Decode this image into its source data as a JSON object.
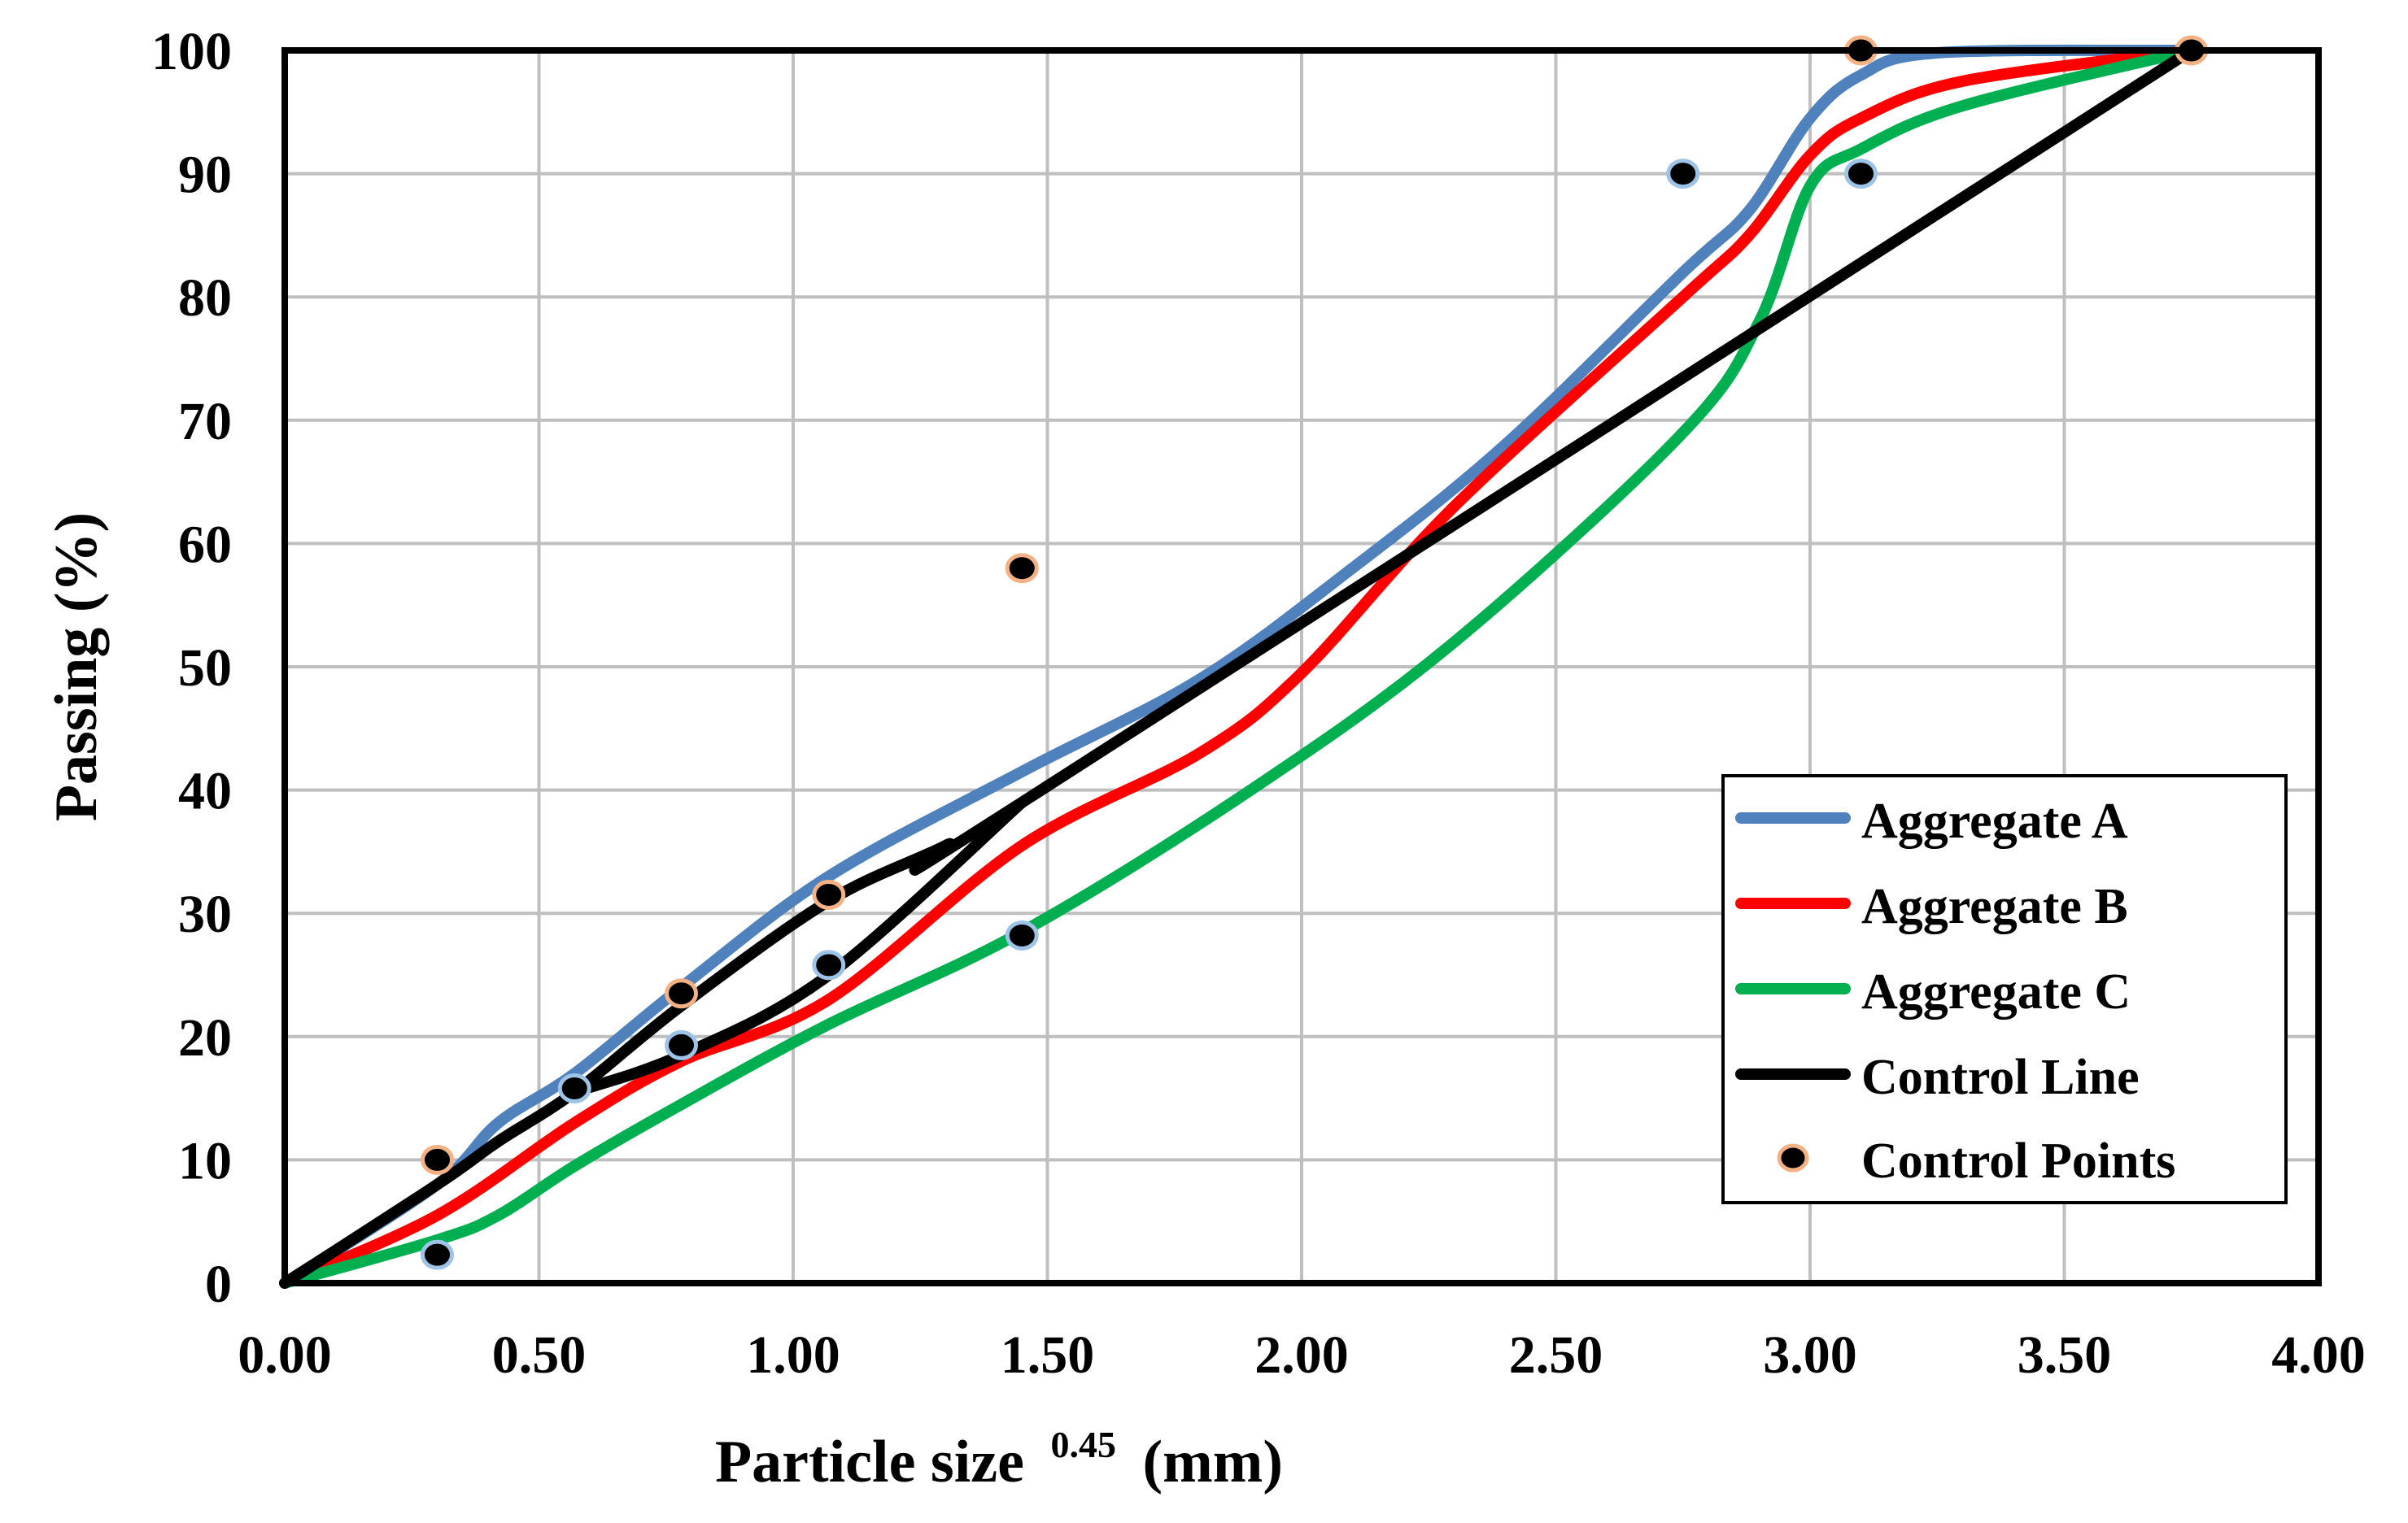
{
  "chart_data": {
    "type": "line",
    "title": "",
    "xlabel_main": "Particle size",
    "xlabel_sup": "0.45",
    "xlabel_unit": "(mm)",
    "ylabel": "Passing (%)",
    "xlim": [
      0,
      4
    ],
    "ylim": [
      0,
      100
    ],
    "x_ticks": [
      0,
      0.5,
      1,
      1.5,
      2,
      2.5,
      3,
      3.5,
      4
    ],
    "x_tick_labels": [
      "0.00",
      "0.50",
      "1.00",
      "1.50",
      "2.00",
      "2.50",
      "3.00",
      "3.50",
      "4.00"
    ],
    "y_ticks": [
      0,
      10,
      20,
      30,
      40,
      50,
      60,
      70,
      80,
      90,
      100
    ],
    "y_tick_labels": [
      "0",
      "10",
      "20",
      "30",
      "40",
      "50",
      "60",
      "70",
      "80",
      "90",
      "100"
    ],
    "grid": true,
    "legend_position": "bottom-right",
    "series": [
      {
        "name": "Aggregate A",
        "color": "#4f81bd",
        "points": [
          [
            0,
            0
          ],
          [
            0.3,
            8
          ],
          [
            0.42,
            13
          ],
          [
            0.57,
            17
          ],
          [
            0.78,
            24
          ],
          [
            1.07,
            33
          ],
          [
            1.45,
            41.5
          ],
          [
            1.8,
            49
          ],
          [
            2.1,
            58
          ],
          [
            2.4,
            68
          ],
          [
            2.75,
            82
          ],
          [
            2.88,
            87
          ],
          [
            3.0,
            94.5
          ],
          [
            3.1,
            98
          ],
          [
            3.25,
            99.8
          ],
          [
            3.75,
            100
          ]
        ]
      },
      {
        "name": "Aggregate B",
        "color": "#ff0000",
        "points": [
          [
            0,
            0
          ],
          [
            0.3,
            5.5
          ],
          [
            0.57,
            13
          ],
          [
            0.78,
            18
          ],
          [
            1.07,
            23
          ],
          [
            1.45,
            35.5
          ],
          [
            1.8,
            43
          ],
          [
            2.0,
            49.5
          ],
          [
            2.3,
            63
          ],
          [
            2.75,
            80
          ],
          [
            2.88,
            85
          ],
          [
            3.0,
            91.5
          ],
          [
            3.1,
            94.5
          ],
          [
            3.3,
            97.5
          ],
          [
            3.75,
            100
          ]
        ]
      },
      {
        "name": "Aggregate C",
        "color": "#00b050",
        "points": [
          [
            0,
            0
          ],
          [
            0.3,
            3.5
          ],
          [
            0.42,
            5.5
          ],
          [
            0.57,
            9.5
          ],
          [
            0.78,
            14.5
          ],
          [
            1.07,
            21
          ],
          [
            1.45,
            28.5
          ],
          [
            1.9,
            40
          ],
          [
            2.3,
            52
          ],
          [
            2.75,
            69
          ],
          [
            2.9,
            78
          ],
          [
            3.0,
            89
          ],
          [
            3.1,
            92
          ],
          [
            3.3,
            95.5
          ],
          [
            3.75,
            100
          ]
        ]
      },
      {
        "name": "Control Line",
        "color": "#000000",
        "points_upper": [
          [
            0,
            0
          ],
          [
            0.3,
            8
          ],
          [
            0.42,
            11.5
          ],
          [
            0.57,
            15.5
          ],
          [
            0.78,
            22.5
          ],
          [
            1.07,
            31
          ],
          [
            1.3,
            35.5
          ],
          [
            1.45,
            39
          ],
          [
            3.75,
            100
          ]
        ],
        "points_lower": [
          [
            0.57,
            15.5
          ],
          [
            0.78,
            18.5
          ],
          [
            1.07,
            25
          ],
          [
            1.45,
            39
          ]
        ]
      }
    ],
    "control_points": {
      "name": "Control Points",
      "edge_color": "#f4b183",
      "fill_color": "#000000",
      "orange_points": [
        [
          0.3,
          10
        ],
        [
          0.78,
          23.5
        ],
        [
          1.07,
          31.5
        ],
        [
          1.45,
          58
        ],
        [
          3.1,
          100
        ],
        [
          3.75,
          100
        ]
      ],
      "blue_points": [
        [
          0.3,
          2.3
        ],
        [
          0.57,
          15.8
        ],
        [
          0.78,
          19.3
        ],
        [
          1.07,
          25.8
        ],
        [
          1.45,
          28.2
        ],
        [
          2.75,
          90
        ],
        [
          3.1,
          90
        ]
      ],
      "blue_edge_color": "#9dc3e6"
    },
    "legend": [
      "Aggregate A",
      "Aggregate B",
      "Aggregate C",
      "Control Line",
      "Control Points"
    ]
  }
}
